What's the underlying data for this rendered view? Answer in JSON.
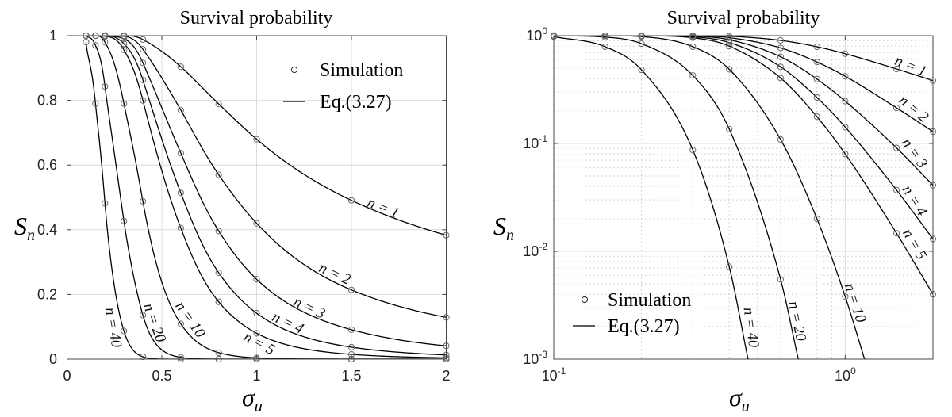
{
  "chart_data": [
    {
      "type": "line",
      "title": "Survival probability",
      "xlabel": {
        "main": "σ",
        "sub": "u"
      },
      "ylabel": {
        "main": "S",
        "sub": "n"
      },
      "xscale": "linear",
      "yscale": "linear",
      "xlim": [
        0,
        2
      ],
      "ylim": [
        0,
        1
      ],
      "xticks": [
        0,
        0.5,
        1,
        1.5,
        2
      ],
      "xtick_labels": [
        "0",
        "0.5",
        "1",
        "1.5",
        "2"
      ],
      "yticks": [
        0,
        0.2,
        0.4,
        0.6,
        0.8,
        1
      ],
      "ytick_labels": [
        "0",
        "0.2",
        "0.4",
        "0.6",
        "0.8",
        "1"
      ],
      "grid": true,
      "legend": {
        "position": "top-right",
        "entries": [
          {
            "label": "Simulation",
            "marker": "circle"
          },
          {
            "label": "Eq.(3.27)",
            "marker": "line"
          }
        ]
      },
      "sigma": [
        0.1,
        0.15,
        0.2,
        0.3,
        0.4,
        0.6,
        0.8,
        1,
        1.5,
        2
      ],
      "series": [
        {
          "name": "n = 1",
          "simulation": [
            1,
            1,
            1,
            1,
            0.988,
            0.904,
            0.789,
            0.68,
            0.491,
            0.383
          ]
        },
        {
          "name": "n = 2",
          "simulation": [
            1,
            1,
            1,
            0.998,
            0.958,
            0.77,
            0.57,
            0.42,
            0.214,
            0.129
          ]
        },
        {
          "name": "n = 3",
          "simulation": [
            1,
            1,
            1,
            0.99,
            0.916,
            0.637,
            0.396,
            0.247,
            0.091,
            0.041
          ]
        },
        {
          "name": "n = 4",
          "simulation": [
            1,
            1,
            1,
            0.975,
            0.863,
            0.514,
            0.267,
            0.142,
            0.037,
            0.013
          ]
        },
        {
          "name": "n = 5",
          "simulation": [
            1,
            1,
            0.998,
            0.956,
            0.8,
            0.405,
            0.177,
            0.08,
            0.0147,
            0.004
          ]
        },
        {
          "name": "n = 10",
          "simulation": [
            1,
            1,
            0.98,
            0.79,
            0.488,
            0.109,
            0.02,
            0.0038,
            0,
            0
          ],
          "eq_reaches_0.001_at_sigma": 1.165
        },
        {
          "name": "n = 20",
          "simulation": [
            1,
            0.97,
            0.843,
            0.427,
            0.136,
            0.0055,
            0,
            0,
            0,
            0
          ],
          "eq_reaches_0.001_at_sigma": 0.69
        },
        {
          "name": "n = 40",
          "simulation": [
            0.98,
            0.79,
            0.482,
            0.087,
            0.0072,
            0,
            0,
            0,
            0,
            0
          ],
          "eq_reaches_0.001_at_sigma": 0.464
        }
      ]
    },
    {
      "type": "line",
      "title": "Survival probability",
      "xlabel": {
        "main": "σ",
        "sub": "u"
      },
      "ylabel": {
        "main": "S",
        "sub": "n"
      },
      "xscale": "log",
      "yscale": "log",
      "xlim": [
        0.1,
        2
      ],
      "ylim": [
        0.001,
        1
      ],
      "xticks": [
        0.1,
        1
      ],
      "xtick_labels": [
        {
          "base": "10",
          "exp": "-1"
        },
        {
          "base": "10",
          "exp": "0"
        }
      ],
      "yticks": [
        0.001,
        0.01,
        0.1,
        1
      ],
      "ytick_labels": [
        {
          "base": "10",
          "exp": "-3"
        },
        {
          "base": "10",
          "exp": "-2"
        },
        {
          "base": "10",
          "exp": "-1"
        },
        {
          "base": "10",
          "exp": "0"
        }
      ],
      "grid": true,
      "minor_grid": true,
      "legend": {
        "position": "bottom-left",
        "entries": [
          {
            "label": "Simulation",
            "marker": "circle"
          },
          {
            "label": "Eq.(3.27)",
            "marker": "line"
          }
        ]
      },
      "sigma": [
        0.1,
        0.15,
        0.2,
        0.3,
        0.4,
        0.6,
        0.8,
        1,
        1.5,
        2
      ],
      "series": [
        {
          "name": "n = 1",
          "simulation": [
            1,
            1,
            1,
            1,
            0.988,
            0.904,
            0.789,
            0.68,
            0.491,
            0.383
          ]
        },
        {
          "name": "n = 2",
          "simulation": [
            1,
            1,
            1,
            0.998,
            0.958,
            0.77,
            0.57,
            0.42,
            0.214,
            0.129
          ]
        },
        {
          "name": "n = 3",
          "simulation": [
            1,
            1,
            1,
            0.99,
            0.916,
            0.637,
            0.396,
            0.247,
            0.091,
            0.041
          ]
        },
        {
          "name": "n = 4",
          "simulation": [
            1,
            1,
            1,
            0.975,
            0.863,
            0.514,
            0.267,
            0.142,
            0.037,
            0.013
          ]
        },
        {
          "name": "n = 5",
          "simulation": [
            1,
            1,
            0.998,
            0.956,
            0.8,
            0.405,
            0.177,
            0.08,
            0.0147,
            0.004
          ]
        },
        {
          "name": "n = 10",
          "simulation": [
            1,
            1,
            0.98,
            0.79,
            0.488,
            0.109,
            0.02,
            0.0038,
            0,
            0
          ],
          "eq_reaches_0.001_at_sigma": 1.165
        },
        {
          "name": "n = 20",
          "simulation": [
            1,
            0.97,
            0.843,
            0.427,
            0.136,
            0.0055,
            0,
            0,
            0,
            0
          ],
          "eq_reaches_0.001_at_sigma": 0.69
        },
        {
          "name": "n = 40",
          "simulation": [
            0.98,
            0.79,
            0.482,
            0.087,
            0.0072,
            0,
            0,
            0,
            0,
            0
          ],
          "eq_reaches_0.001_at_sigma": 0.464
        }
      ]
    }
  ]
}
